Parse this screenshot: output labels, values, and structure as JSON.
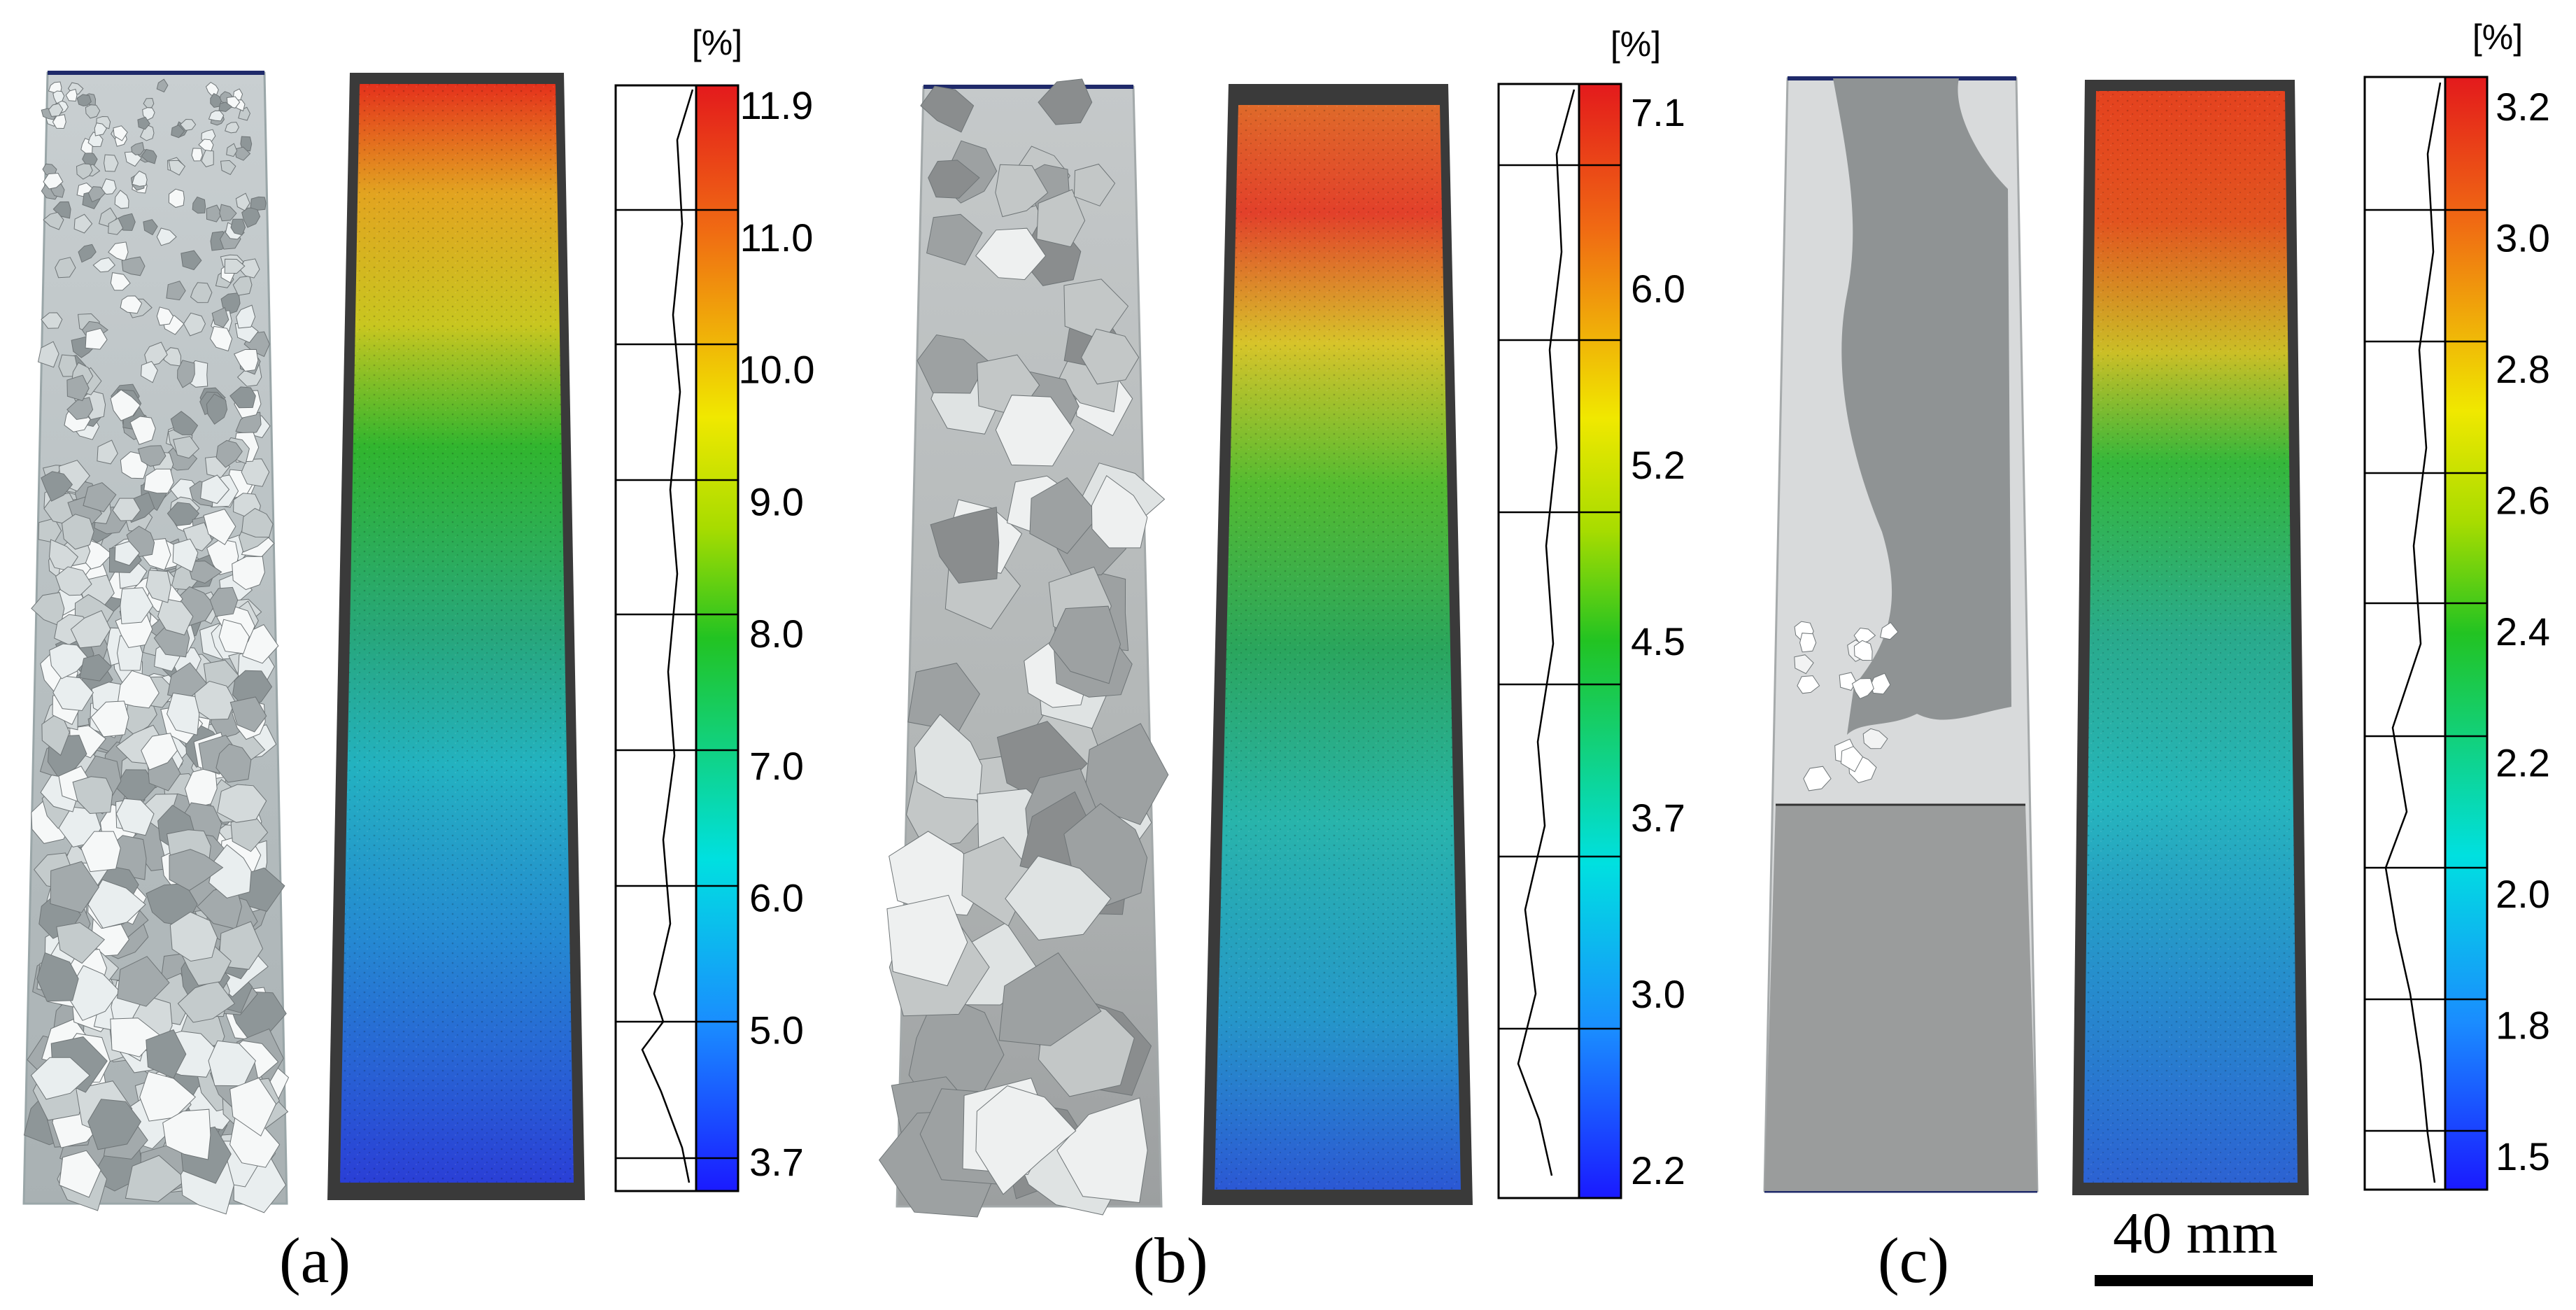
{
  "figure": {
    "unit_label": "[%]",
    "scale_bar_label": "40 mm",
    "panels": [
      {
        "label": "(a)",
        "colorbar_ticks": [
          "11.9",
          "11.0",
          "10.0",
          "9.0",
          "8.0",
          "7.0",
          "6.0",
          "5.0",
          "3.7"
        ]
      },
      {
        "label": "(b)",
        "colorbar_ticks": [
          "7.1",
          "6.0",
          "5.2",
          "4.5",
          "3.7",
          "3.0",
          "2.2"
        ]
      },
      {
        "label": "(c)",
        "colorbar_ticks": [
          "3.2",
          "3.0",
          "2.8",
          "2.6",
          "2.4",
          "2.2",
          "2.0",
          "1.8",
          "1.5"
        ]
      }
    ],
    "colors": {
      "jet_high": "#e31a1c",
      "jet_mid": "#22c322",
      "jet_low": "#1a1aff"
    }
  }
}
